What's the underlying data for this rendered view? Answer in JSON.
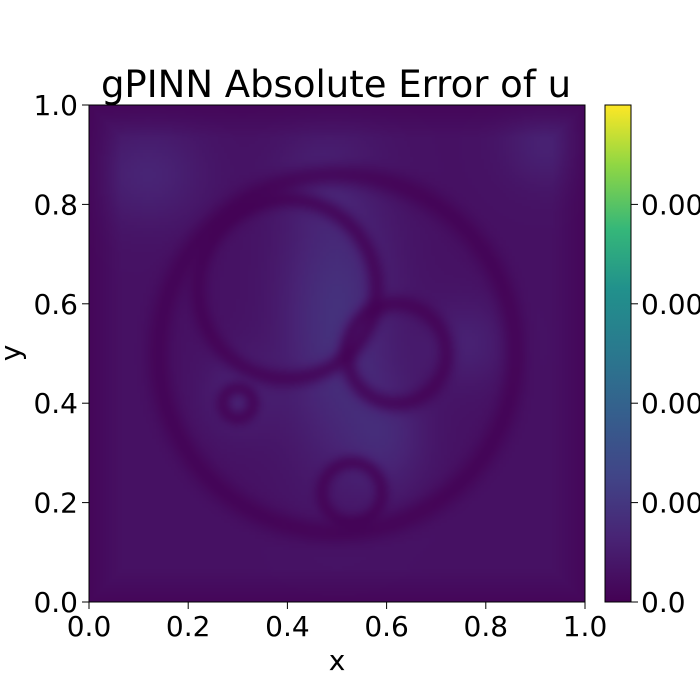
{
  "chart_data": {
    "type": "heatmap",
    "title": "gPINN Absolute Error of u",
    "xlabel": "x",
    "ylabel": "y",
    "xlim": [
      0.0,
      1.0
    ],
    "ylim": [
      0.0,
      1.0
    ],
    "x_ticks": [
      "0.0",
      "0.2",
      "0.4",
      "0.6",
      "0.8",
      "1.0"
    ],
    "y_ticks": [
      "0.0",
      "0.2",
      "0.4",
      "0.6",
      "0.8",
      "1.0"
    ],
    "colorbar": {
      "colormap": "viridis",
      "tick_labels": [
        "0.0",
        "0.00",
        "0.00",
        "0.00",
        "0.00"
      ],
      "range_fraction": [
        0.0,
        1.0
      ]
    },
    "grid": false,
    "error_field": {
      "background_level": 0.06,
      "blobs": [
        {
          "x": 0.5,
          "y": 0.57,
          "sx": 0.08,
          "sy": 0.2,
          "level": 0.12
        },
        {
          "x": 0.12,
          "y": 0.86,
          "sx": 0.08,
          "sy": 0.07,
          "level": 0.07
        },
        {
          "x": 0.92,
          "y": 0.92,
          "sx": 0.06,
          "sy": 0.06,
          "level": 0.06
        },
        {
          "x": 0.6,
          "y": 0.33,
          "sx": 0.06,
          "sy": 0.08,
          "level": 0.07
        },
        {
          "x": 0.76,
          "y": 0.52,
          "sx": 0.06,
          "sy": 0.06,
          "level": 0.06
        },
        {
          "x": 0.3,
          "y": 0.42,
          "sx": 0.05,
          "sy": 0.06,
          "level": 0.06
        },
        {
          "x": 0.46,
          "y": 0.85,
          "sx": 0.06,
          "sy": 0.05,
          "level": 0.04
        }
      ],
      "valleys": [
        {
          "x": 0.5,
          "y": 0.5,
          "r": 0.36,
          "width": 0.018
        },
        {
          "x": 0.3,
          "y": 0.4,
          "r": 0.03,
          "width": 0.012
        },
        {
          "x": 0.53,
          "y": 0.22,
          "r": 0.06,
          "width": 0.012
        },
        {
          "x": 0.62,
          "y": 0.5,
          "r": 0.1,
          "width": 0.014
        },
        {
          "x": 0.4,
          "y": 0.63,
          "r": 0.18,
          "width": 0.014
        }
      ]
    }
  }
}
